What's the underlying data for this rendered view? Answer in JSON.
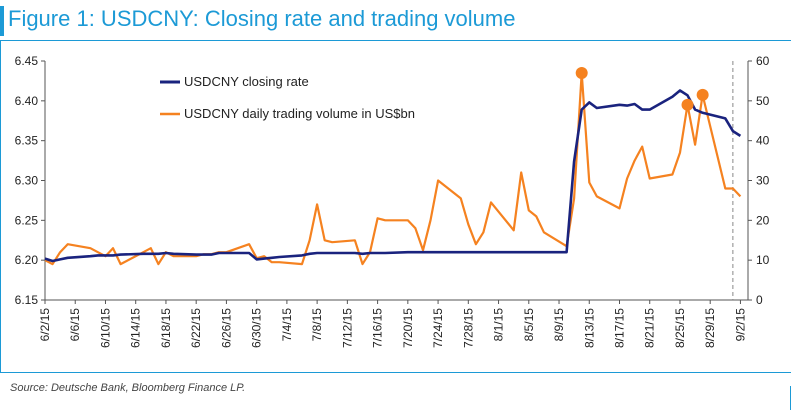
{
  "figure": {
    "title": "Figure 1: USDCNY: Closing rate and trading volume",
    "source": "Source: Deutsche Bank, Bloomberg Finance LP."
  },
  "colors": {
    "accent": "#1c9ad6",
    "closing_rate": "#1a237e",
    "volume": "#f58220"
  },
  "chart_data": {
    "type": "line",
    "title": "Figure 1: USDCNY: Closing rate and trading volume",
    "x_tick_labels": [
      "6/2/15",
      "6/6/15",
      "6/10/15",
      "6/14/15",
      "6/18/15",
      "6/22/15",
      "6/26/15",
      "6/30/15",
      "7/4/15",
      "7/8/15",
      "7/12/15",
      "7/16/15",
      "7/20/15",
      "7/24/15",
      "7/28/15",
      "8/1/15",
      "8/5/15",
      "8/9/15",
      "8/13/15",
      "8/17/15",
      "8/21/15",
      "8/25/15",
      "8/29/15",
      "9/2/15"
    ],
    "x_range": [
      "2015-06-02",
      "2015-09-03"
    ],
    "y_left": {
      "range": [
        6.15,
        6.45
      ],
      "ticks": [
        "6.15",
        "6.20",
        "6.25",
        "6.30",
        "6.35",
        "6.40",
        "6.45"
      ]
    },
    "y_right": {
      "range": [
        0,
        60
      ],
      "ticks": [
        "0",
        "10",
        "20",
        "30",
        "40",
        "50",
        "60"
      ]
    },
    "legend": {
      "placement": "top-left"
    },
    "grid": false,
    "reference_line": {
      "date": "2015-09-01",
      "style": "dashed"
    },
    "series": [
      {
        "name": "USDCNY closing rate",
        "axis": "left",
        "style": "line",
        "points": [
          [
            "2015-06-02",
            6.202
          ],
          [
            "2015-06-03",
            6.199
          ],
          [
            "2015-06-04",
            6.201
          ],
          [
            "2015-06-05",
            6.203
          ],
          [
            "2015-06-08",
            6.205
          ],
          [
            "2015-06-09",
            6.206
          ],
          [
            "2015-06-10",
            6.206
          ],
          [
            "2015-06-11",
            6.206
          ],
          [
            "2015-06-12",
            6.207
          ],
          [
            "2015-06-15",
            6.208
          ],
          [
            "2015-06-16",
            6.208
          ],
          [
            "2015-06-17",
            6.208
          ],
          [
            "2015-06-18",
            6.209
          ],
          [
            "2015-06-19",
            6.208
          ],
          [
            "2015-06-22",
            6.207
          ],
          [
            "2015-06-23",
            6.207
          ],
          [
            "2015-06-24",
            6.207
          ],
          [
            "2015-06-25",
            6.209
          ],
          [
            "2015-06-26",
            6.209
          ],
          [
            "2015-06-29",
            6.209
          ],
          [
            "2015-06-30",
            6.201
          ],
          [
            "2015-07-01",
            6.202
          ],
          [
            "2015-07-02",
            6.203
          ],
          [
            "2015-07-03",
            6.204
          ],
          [
            "2015-07-06",
            6.206
          ],
          [
            "2015-07-07",
            6.208
          ],
          [
            "2015-07-08",
            6.209
          ],
          [
            "2015-07-09",
            6.209
          ],
          [
            "2015-07-10",
            6.209
          ],
          [
            "2015-07-13",
            6.209
          ],
          [
            "2015-07-14",
            6.208
          ],
          [
            "2015-07-15",
            6.209
          ],
          [
            "2015-07-16",
            6.209
          ],
          [
            "2015-07-17",
            6.209
          ],
          [
            "2015-07-20",
            6.21
          ],
          [
            "2015-07-21",
            6.21
          ],
          [
            "2015-07-22",
            6.21
          ],
          [
            "2015-07-23",
            6.21
          ],
          [
            "2015-07-24",
            6.21
          ],
          [
            "2015-07-27",
            6.21
          ],
          [
            "2015-07-28",
            6.21
          ],
          [
            "2015-07-29",
            6.21
          ],
          [
            "2015-07-30",
            6.21
          ],
          [
            "2015-07-31",
            6.21
          ],
          [
            "2015-08-03",
            6.21
          ],
          [
            "2015-08-04",
            6.21
          ],
          [
            "2015-08-05",
            6.21
          ],
          [
            "2015-08-06",
            6.21
          ],
          [
            "2015-08-07",
            6.21
          ],
          [
            "2015-08-10",
            6.21
          ],
          [
            "2015-08-11",
            6.324
          ],
          [
            "2015-08-12",
            6.389
          ],
          [
            "2015-08-13",
            6.398
          ],
          [
            "2015-08-14",
            6.391
          ],
          [
            "2015-08-17",
            6.395
          ],
          [
            "2015-08-18",
            6.394
          ],
          [
            "2015-08-19",
            6.396
          ],
          [
            "2015-08-20",
            6.389
          ],
          [
            "2015-08-21",
            6.389
          ],
          [
            "2015-08-24",
            6.405
          ],
          [
            "2015-08-25",
            6.413
          ],
          [
            "2015-08-26",
            6.407
          ],
          [
            "2015-08-27",
            6.389
          ],
          [
            "2015-08-28",
            6.385
          ],
          [
            "2015-08-31",
            6.378
          ],
          [
            "2015-09-01",
            6.362
          ],
          [
            "2015-09-02",
            6.356
          ]
        ]
      },
      {
        "name": "USDCNY daily trading volume in US$bn",
        "axis": "right",
        "style": "line",
        "highlighted_points": [
          "2015-08-12",
          "2015-08-26",
          "2015-08-28"
        ],
        "points": [
          [
            "2015-06-02",
            10
          ],
          [
            "2015-06-03",
            9
          ],
          [
            "2015-06-04",
            12
          ],
          [
            "2015-06-05",
            14
          ],
          [
            "2015-06-08",
            13
          ],
          [
            "2015-06-09",
            12
          ],
          [
            "2015-06-10",
            11
          ],
          [
            "2015-06-11",
            13
          ],
          [
            "2015-06-12",
            9
          ],
          [
            "2015-06-15",
            12
          ],
          [
            "2015-06-16",
            13
          ],
          [
            "2015-06-17",
            9
          ],
          [
            "2015-06-18",
            12
          ],
          [
            "2015-06-19",
            11
          ],
          [
            "2015-06-22",
            11
          ],
          [
            "2015-06-23",
            11.5
          ],
          [
            "2015-06-24",
            11.5
          ],
          [
            "2015-06-25",
            12
          ],
          [
            "2015-06-26",
            12
          ],
          [
            "2015-06-29",
            14
          ],
          [
            "2015-06-30",
            10.5
          ],
          [
            "2015-07-01",
            11
          ],
          [
            "2015-07-02",
            9.5
          ],
          [
            "2015-07-03",
            9.5
          ],
          [
            "2015-07-06",
            9
          ],
          [
            "2015-07-07",
            15
          ],
          [
            "2015-07-08",
            24
          ],
          [
            "2015-07-09",
            15
          ],
          [
            "2015-07-10",
            14.5
          ],
          [
            "2015-07-13",
            15
          ],
          [
            "2015-07-14",
            9
          ],
          [
            "2015-07-15",
            12
          ],
          [
            "2015-07-16",
            20.5
          ],
          [
            "2015-07-17",
            20
          ],
          [
            "2015-07-20",
            20
          ],
          [
            "2015-07-21",
            18
          ],
          [
            "2015-07-22",
            12.5
          ],
          [
            "2015-07-23",
            20
          ],
          [
            "2015-07-24",
            30
          ],
          [
            "2015-07-27",
            25.5
          ],
          [
            "2015-07-28",
            19
          ],
          [
            "2015-07-29",
            14
          ],
          [
            "2015-07-30",
            17
          ],
          [
            "2015-07-31",
            24.5
          ],
          [
            "2015-08-03",
            17.5
          ],
          [
            "2015-08-04",
            32
          ],
          [
            "2015-08-05",
            22.5
          ],
          [
            "2015-08-06",
            21
          ],
          [
            "2015-08-07",
            17
          ],
          [
            "2015-08-10",
            13.5
          ],
          [
            "2015-08-11",
            25.5
          ],
          [
            "2015-08-12",
            57
          ],
          [
            "2015-08-13",
            29.5
          ],
          [
            "2015-08-14",
            26
          ],
          [
            "2015-08-17",
            23
          ],
          [
            "2015-08-18",
            30.5
          ],
          [
            "2015-08-19",
            35
          ],
          [
            "2015-08-20",
            38.5
          ],
          [
            "2015-08-21",
            30.5
          ],
          [
            "2015-08-24",
            31.5
          ],
          [
            "2015-08-25",
            37
          ],
          [
            "2015-08-26",
            49
          ],
          [
            "2015-08-27",
            39
          ],
          [
            "2015-08-28",
            51.5
          ],
          [
            "2015-08-31",
            28
          ],
          [
            "2015-09-01",
            28
          ],
          [
            "2015-09-02",
            26
          ]
        ]
      }
    ]
  }
}
